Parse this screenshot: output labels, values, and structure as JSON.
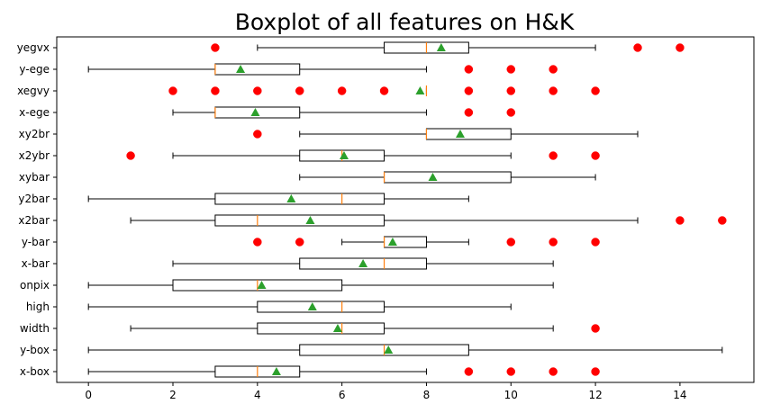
{
  "chart_data": {
    "type": "boxplot",
    "title": "Boxplot of all features on H&K",
    "orientation": "horizontal",
    "xlim": [
      -0.75,
      15.75
    ],
    "xticks": [
      0,
      2,
      4,
      6,
      8,
      10,
      12,
      14
    ],
    "grid": false,
    "colors": {
      "box": "#000000",
      "median": "#ff7f0e",
      "mean": "#2ca02c",
      "outlier": "#ff0000"
    },
    "features": [
      {
        "label": "yegvx",
        "whislo": 4,
        "q1": 7,
        "median": 8,
        "q3": 9,
        "whishi": 12,
        "mean": 8.35,
        "fliers": [
          3,
          13,
          14
        ]
      },
      {
        "label": "y-ege",
        "whislo": 0,
        "q1": 3,
        "median": 3,
        "q3": 5,
        "whishi": 8,
        "mean": 3.6,
        "fliers": [
          9,
          10,
          11
        ]
      },
      {
        "label": "xegvy",
        "whislo": 8,
        "q1": 8,
        "median": 8,
        "q3": 8,
        "whishi": 8,
        "mean": 7.85,
        "fliers": [
          2,
          3,
          4,
          5,
          6,
          7,
          9,
          10,
          11,
          12
        ]
      },
      {
        "label": "x-ege",
        "whislo": 2,
        "q1": 3,
        "median": 3,
        "q3": 5,
        "whishi": 8,
        "mean": 3.95,
        "fliers": [
          9,
          10
        ]
      },
      {
        "label": "xy2br",
        "whislo": 5,
        "q1": 8,
        "median": 8,
        "q3": 10,
        "whishi": 13,
        "mean": 8.8,
        "fliers": [
          4
        ]
      },
      {
        "label": "x2ybr",
        "whislo": 2,
        "q1": 5,
        "median": 6,
        "q3": 7,
        "whishi": 10,
        "mean": 6.05,
        "fliers": [
          1,
          11,
          12
        ]
      },
      {
        "label": "xybar",
        "whislo": 5,
        "q1": 7,
        "median": 7,
        "q3": 10,
        "whishi": 12,
        "mean": 8.15,
        "fliers": []
      },
      {
        "label": "y2bar",
        "whislo": 0,
        "q1": 3,
        "median": 6,
        "q3": 7,
        "whishi": 9,
        "mean": 4.8,
        "fliers": []
      },
      {
        "label": "x2bar",
        "whislo": 1,
        "q1": 3,
        "median": 4,
        "q3": 7,
        "whishi": 13,
        "mean": 5.25,
        "fliers": [
          14,
          15
        ]
      },
      {
        "label": "y-bar",
        "whislo": 6,
        "q1": 7,
        "median": 7,
        "q3": 8,
        "whishi": 9,
        "mean": 7.2,
        "fliers": [
          4,
          5,
          10,
          11,
          12
        ]
      },
      {
        "label": "x-bar",
        "whislo": 2,
        "q1": 5,
        "median": 7,
        "q3": 8,
        "whishi": 11,
        "mean": 6.5,
        "fliers": []
      },
      {
        "label": "onpix",
        "whislo": 0,
        "q1": 2,
        "median": 4,
        "q3": 6,
        "whishi": 11,
        "mean": 4.1,
        "fliers": []
      },
      {
        "label": "high",
        "whislo": 0,
        "q1": 4,
        "median": 6,
        "q3": 7,
        "whishi": 10,
        "mean": 5.3,
        "fliers": []
      },
      {
        "label": "width",
        "whislo": 1,
        "q1": 4,
        "median": 6,
        "q3": 7,
        "whishi": 11,
        "mean": 5.9,
        "fliers": [
          12
        ]
      },
      {
        "label": "y-box",
        "whislo": 0,
        "q1": 5,
        "median": 7,
        "q3": 9,
        "whishi": 15,
        "mean": 7.1,
        "fliers": []
      },
      {
        "label": "x-box",
        "whislo": 0,
        "q1": 3,
        "median": 4,
        "q3": 5,
        "whishi": 8,
        "mean": 4.45,
        "fliers": [
          9,
          10,
          11,
          12
        ]
      }
    ]
  }
}
